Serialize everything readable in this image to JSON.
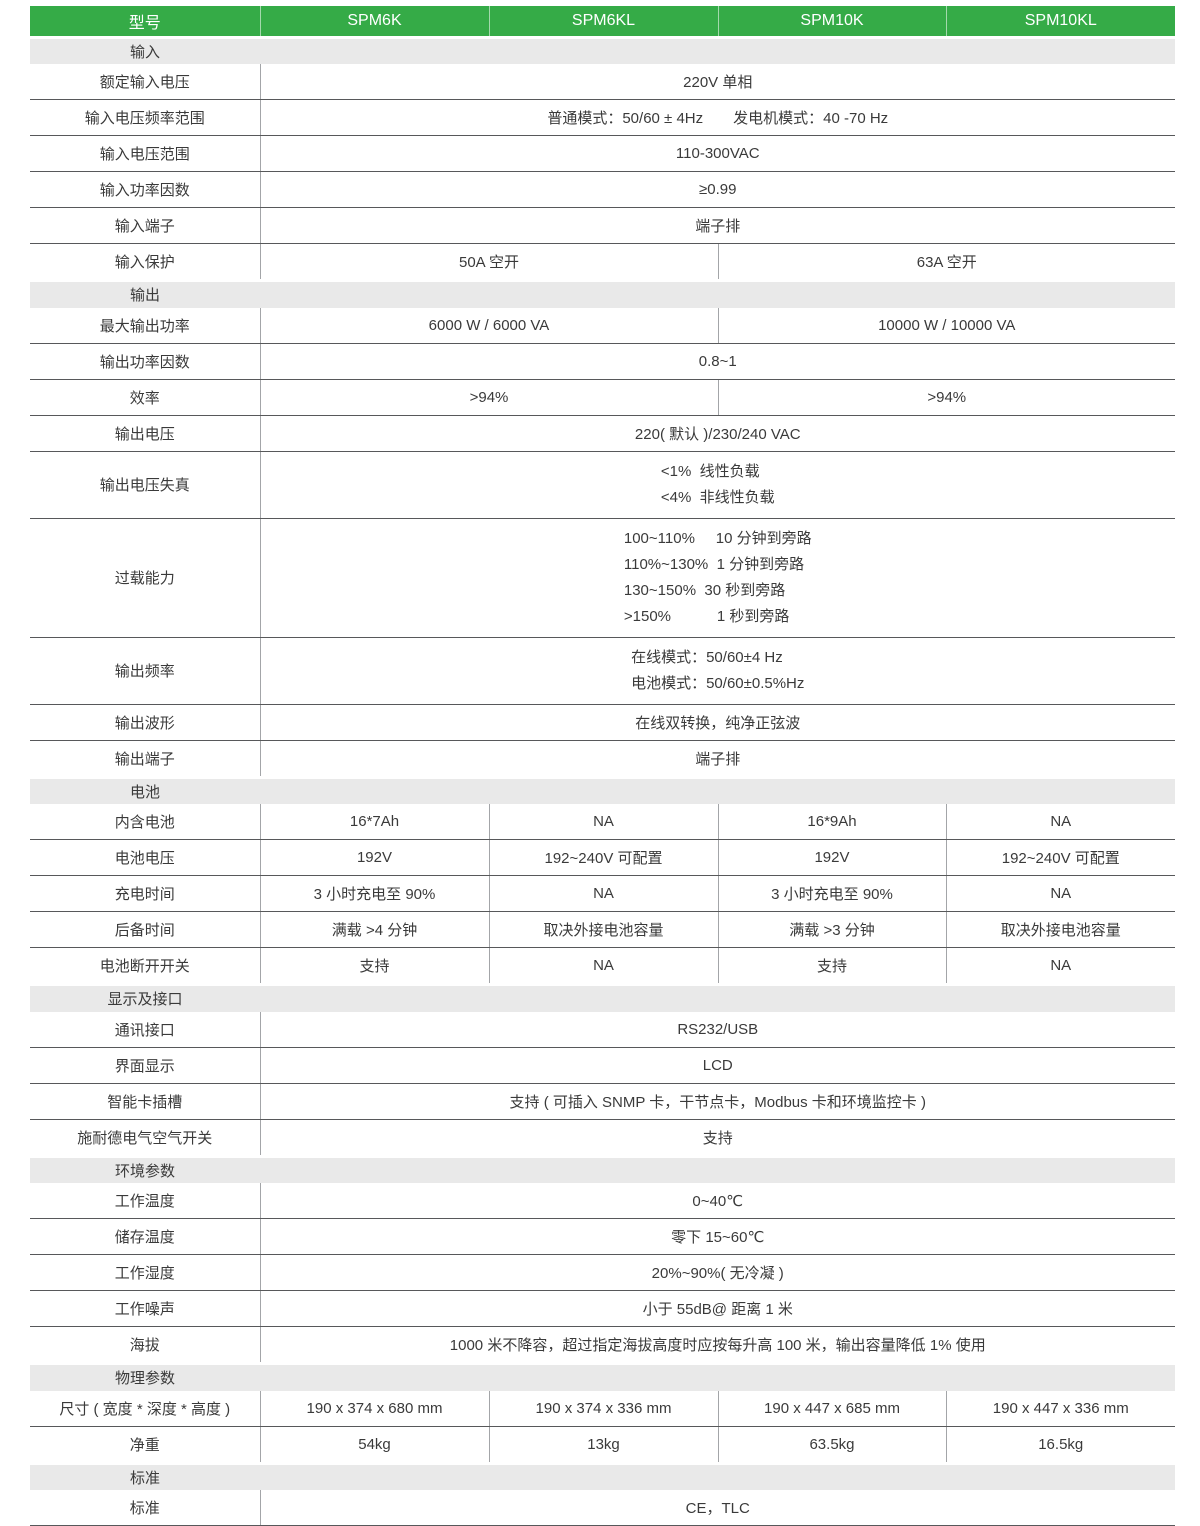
{
  "colors": {
    "header_bg": "#35ab47",
    "header_text": "#ffffff",
    "band_bg": "#e9e9e9",
    "rule_dark": "#57585a",
    "rule_light": "#a3a5a8",
    "text": "#3a3a3a"
  },
  "header": {
    "label": "型号",
    "models": [
      "SPM6K",
      "SPM6KL",
      "SPM10K",
      "SPM10KL"
    ]
  },
  "rows": [
    {
      "type": "section",
      "label": "输入"
    },
    {
      "type": "row",
      "label": "额定输入电压",
      "cells": [
        {
          "span": 4,
          "text": "220V 单相"
        }
      ]
    },
    {
      "type": "row",
      "label": "输入电压频率范围",
      "cells": [
        {
          "span": 4,
          "text": "普通模式：50/60 ± 4Hz　　发电机模式：40 -70 Hz"
        }
      ]
    },
    {
      "type": "row",
      "label": "输入电压范围",
      "cells": [
        {
          "span": 4,
          "text": "110-300VAC"
        }
      ]
    },
    {
      "type": "row",
      "label": "输入功率因数",
      "cells": [
        {
          "span": 4,
          "text": "≥0.99"
        }
      ]
    },
    {
      "type": "row",
      "label": "输入端子",
      "cells": [
        {
          "span": 4,
          "text": "端子排"
        }
      ]
    },
    {
      "type": "row",
      "label": "输入保护",
      "cells": [
        {
          "span": 2,
          "text": "50A 空开"
        },
        {
          "span": 2,
          "text": "63A 空开"
        }
      ]
    },
    {
      "type": "section",
      "label": "输出"
    },
    {
      "type": "row",
      "label": "最大输出功率",
      "cells": [
        {
          "span": 2,
          "text": "6000 W / 6000 VA"
        },
        {
          "span": 2,
          "text": "10000 W / 10000 VA"
        }
      ]
    },
    {
      "type": "row",
      "label": "输出功率因数",
      "cells": [
        {
          "span": 4,
          "text": "0.8~1"
        }
      ]
    },
    {
      "type": "row",
      "label": "效率",
      "cells": [
        {
          "span": 2,
          "text": ">94%"
        },
        {
          "span": 2,
          "text": ">94%"
        }
      ]
    },
    {
      "type": "row",
      "label": "输出电压",
      "cells": [
        {
          "span": 4,
          "text": "220( 默认 )/230/240 VAC"
        }
      ]
    },
    {
      "type": "row",
      "label": "输出电压失真",
      "cells": [
        {
          "span": 4,
          "lines": [
            "<1%  线性负载",
            "<4%  非线性负载"
          ]
        }
      ]
    },
    {
      "type": "row",
      "label": "过载能力",
      "cells": [
        {
          "span": 4,
          "lines": [
            "100~110%     10 分钟到旁路",
            "110%~130%  1 分钟到旁路",
            "130~150%  30 秒到旁路",
            ">150%           1 秒到旁路"
          ]
        }
      ]
    },
    {
      "type": "row",
      "label": "输出频率",
      "cells": [
        {
          "span": 4,
          "lines": [
            "在线模式：50/60±4 Hz",
            "电池模式：50/60±0.5%Hz"
          ]
        }
      ]
    },
    {
      "type": "row",
      "label": "输出波形",
      "cells": [
        {
          "span": 4,
          "text": "在线双转换，纯净正弦波"
        }
      ]
    },
    {
      "type": "row",
      "label": "输出端子",
      "cells": [
        {
          "span": 4,
          "text": "端子排"
        }
      ]
    },
    {
      "type": "section",
      "label": "电池"
    },
    {
      "type": "row",
      "label": "内含电池",
      "cells": [
        {
          "text": "16*7Ah"
        },
        {
          "text": "NA"
        },
        {
          "text": "16*9Ah"
        },
        {
          "text": "NA"
        }
      ]
    },
    {
      "type": "row",
      "label": "电池电压",
      "cells": [
        {
          "text": "192V"
        },
        {
          "text": "192~240V 可配置"
        },
        {
          "text": "192V"
        },
        {
          "text": "192~240V 可配置"
        }
      ]
    },
    {
      "type": "row",
      "label": "充电时间",
      "cells": [
        {
          "text": "3 小时充电至 90%"
        },
        {
          "text": "NA"
        },
        {
          "text": "3 小时充电至 90%"
        },
        {
          "text": "NA"
        }
      ]
    },
    {
      "type": "row",
      "label": "后备时间",
      "cells": [
        {
          "text": "满载 >4 分钟"
        },
        {
          "text": "取决外接电池容量"
        },
        {
          "text": "满载 >3 分钟"
        },
        {
          "text": "取决外接电池容量"
        }
      ]
    },
    {
      "type": "row",
      "label": "电池断开开关",
      "cells": [
        {
          "text": "支持"
        },
        {
          "text": "NA"
        },
        {
          "text": "支持"
        },
        {
          "text": "NA"
        }
      ]
    },
    {
      "type": "section",
      "label": "显示及接口"
    },
    {
      "type": "row",
      "label": "通讯接口",
      "cells": [
        {
          "span": 4,
          "text": "RS232/USB"
        }
      ]
    },
    {
      "type": "row",
      "label": "界面显示",
      "cells": [
        {
          "span": 4,
          "text": "LCD"
        }
      ]
    },
    {
      "type": "row",
      "label": "智能卡插槽",
      "cells": [
        {
          "span": 4,
          "text": "支持 ( 可插入 SNMP 卡，干节点卡，Modbus 卡和环境监控卡 )"
        }
      ]
    },
    {
      "type": "row",
      "label": "施耐德电气空气开关",
      "cells": [
        {
          "span": 4,
          "text": "支持"
        }
      ]
    },
    {
      "type": "section",
      "label": "环境参数"
    },
    {
      "type": "row",
      "label": "工作温度",
      "cells": [
        {
          "span": 4,
          "text": "0~40℃"
        }
      ]
    },
    {
      "type": "row",
      "label": "储存温度",
      "cells": [
        {
          "span": 4,
          "text": "零下 15~60℃"
        }
      ]
    },
    {
      "type": "row",
      "label": "工作湿度",
      "cells": [
        {
          "span": 4,
          "text": "20%~90%( 无冷凝 )"
        }
      ]
    },
    {
      "type": "row",
      "label": "工作噪声",
      "cells": [
        {
          "span": 4,
          "text": "小于 55dB@ 距离 1 米"
        }
      ]
    },
    {
      "type": "row",
      "label": "海拔",
      "cells": [
        {
          "span": 4,
          "text": "1000 米不降容，超过指定海拔高度时应按每升高 100 米，输出容量降低 1% 使用"
        }
      ]
    },
    {
      "type": "section",
      "label": "物理参数"
    },
    {
      "type": "row",
      "label": "尺寸 ( 宽度 * 深度 * 高度 )",
      "cells": [
        {
          "text": "190 x 374 x 680 mm"
        },
        {
          "text": "190 x 374 x 336 mm"
        },
        {
          "text": "190 x 447 x 685 mm"
        },
        {
          "text": "190 x 447 x 336 mm"
        }
      ]
    },
    {
      "type": "row",
      "label": "净重",
      "cells": [
        {
          "text": "54kg"
        },
        {
          "text": "13kg"
        },
        {
          "text": "63.5kg"
        },
        {
          "text": "16.5kg"
        }
      ]
    },
    {
      "type": "section",
      "label": "标准"
    },
    {
      "type": "row",
      "label": "标准",
      "cells": [
        {
          "span": 4,
          "text": "CE，TLC"
        }
      ]
    }
  ]
}
